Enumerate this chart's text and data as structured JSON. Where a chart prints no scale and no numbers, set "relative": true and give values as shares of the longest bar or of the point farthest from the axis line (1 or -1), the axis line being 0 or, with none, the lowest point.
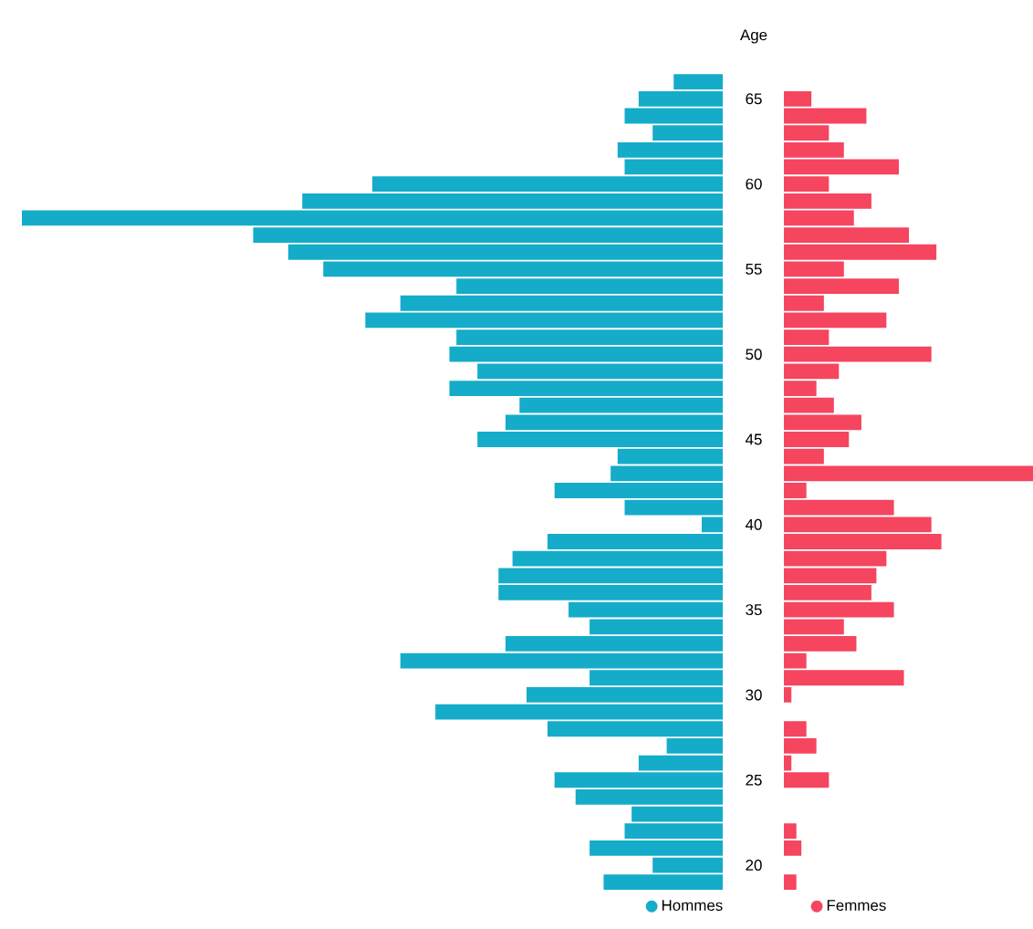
{
  "chart_data": [
    {
      "type": "bar",
      "orientation": "horizontal",
      "relative": true,
      "ylabel": "Age",
      "legend": "bottom",
      "categories": [
        null,
        "65",
        null,
        null,
        null,
        null,
        "60",
        null,
        null,
        null,
        null,
        "55",
        null,
        null,
        null,
        null,
        "50",
        null,
        null,
        null,
        null,
        "45",
        null,
        null,
        null,
        null,
        "40",
        null,
        null,
        null,
        null,
        "35",
        null,
        null,
        null,
        null,
        "30",
        null,
        null,
        null,
        null,
        "25",
        null,
        null,
        null,
        null,
        "20",
        null
      ],
      "series": [
        {
          "name": "Hommes",
          "color": "#14acc9",
          "values": [
            -0.07,
            -0.12,
            -0.14,
            -0.1,
            -0.15,
            -0.14,
            -0.5,
            -0.6,
            -1,
            -0.67,
            -0.62,
            -0.57,
            -0.38,
            -0.46,
            -0.51,
            -0.38,
            -0.39,
            -0.35,
            -0.39,
            -0.29,
            -0.31,
            -0.35,
            -0.15,
            -0.16,
            -0.24,
            -0.14,
            -0.03,
            -0.25,
            -0.3,
            -0.32,
            -0.32,
            -0.22,
            -0.19,
            -0.31,
            -0.46,
            -0.19,
            -0.28,
            -0.41,
            -0.25,
            -0.08,
            -0.12,
            -0.24,
            -0.21,
            -0.13,
            -0.14,
            -0.19,
            -0.1,
            -0.17
          ]
        }
      ]
    },
    {
      "type": "bar",
      "orientation": "horizontal",
      "relative": true,
      "legend": "bottom",
      "categories": [
        null,
        null,
        null,
        null,
        null,
        null,
        null,
        null,
        null,
        null,
        null,
        null,
        null,
        null,
        null,
        null,
        null,
        null,
        null,
        null,
        null,
        null,
        null,
        null,
        null,
        null,
        null,
        null,
        null,
        null,
        null,
        null,
        null,
        null,
        null,
        null,
        null,
        null,
        null,
        null,
        null,
        null,
        null,
        null,
        null,
        null,
        null,
        null
      ],
      "series": [
        {
          "name": "Femmes",
          "color": "#f5455f",
          "values": [
            0,
            0.11,
            0.33,
            0.18,
            0.24,
            0.46,
            0.18,
            0.35,
            0.28,
            0.5,
            0.61,
            0.24,
            0.46,
            0.16,
            0.41,
            0.18,
            0.59,
            0.22,
            0.13,
            0.2,
            0.31,
            0.26,
            0.16,
            1,
            0.09,
            0.44,
            0.59,
            0.63,
            0.41,
            0.37,
            0.35,
            0.44,
            0.24,
            0.29,
            0.09,
            0.48,
            0.03,
            0,
            0.09,
            0.13,
            0.03,
            0.18,
            0,
            0,
            0.05,
            0.07,
            0,
            0.05
          ]
        }
      ]
    }
  ]
}
